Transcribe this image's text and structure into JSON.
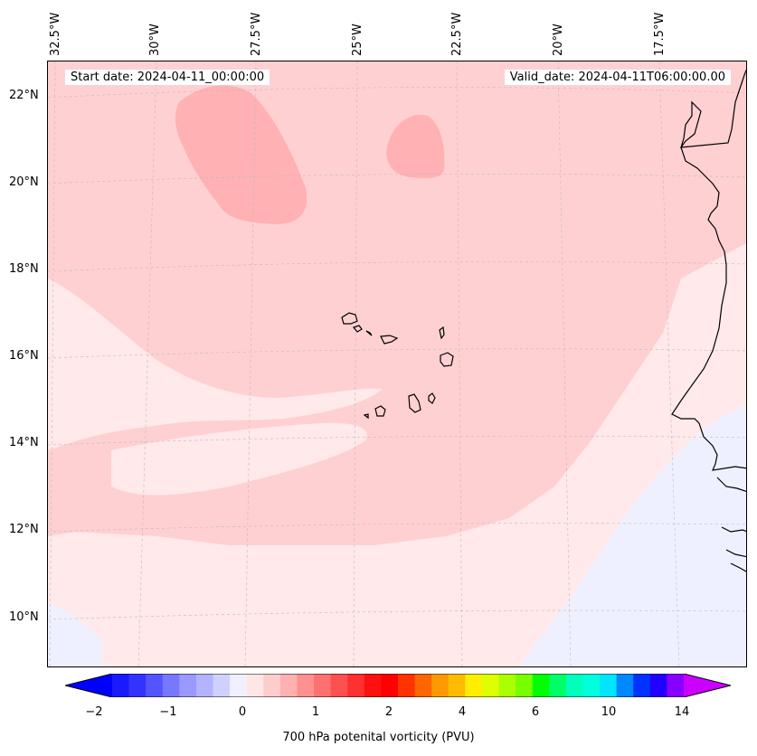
{
  "map": {
    "start_date": "Start date: 2024-04-11_00:00:00",
    "valid_date": "Valid_date: 2024-04-11T06:00:00.00",
    "lat_labels": [
      "22°N",
      "20°N",
      "18°N",
      "16°N",
      "14°N",
      "12°N",
      "10°N"
    ],
    "lon_labels": [
      "32.5°W",
      "30°W",
      "27.5°W",
      "25°W",
      "22.5°W",
      "20°W",
      "17.5°W"
    ],
    "colorbar": {
      "title": "700 hPa potenital vorticity (PVU)",
      "ticks": [
        "−2",
        "−1",
        "0",
        "1",
        "2",
        "4",
        "6",
        "10",
        "14"
      ],
      "colors": [
        "#1a1aff",
        "#3333ff",
        "#5555ff",
        "#7777ff",
        "#9999ff",
        "#b3b3ff",
        "#d0d0ff",
        "#f0f0ff",
        "#ffe6e6",
        "#ffcccc",
        "#ffb0b0",
        "#ff9090",
        "#ff7070",
        "#ff5050",
        "#ff3030",
        "#ff1010",
        "#ff0000",
        "#ff3300",
        "#ff6600",
        "#ff9900",
        "#ffbb00",
        "#ffee00",
        "#ddff00",
        "#aaff00",
        "#77ff00",
        "#00ff00",
        "#00ff66",
        "#00ffbb",
        "#00ffdd",
        "#00e6ff",
        "#0088ff",
        "#0033ff",
        "#2200ff",
        "#8800ff"
      ],
      "under_color": "#0000ff",
      "over_color": "#cc00ff"
    }
  }
}
